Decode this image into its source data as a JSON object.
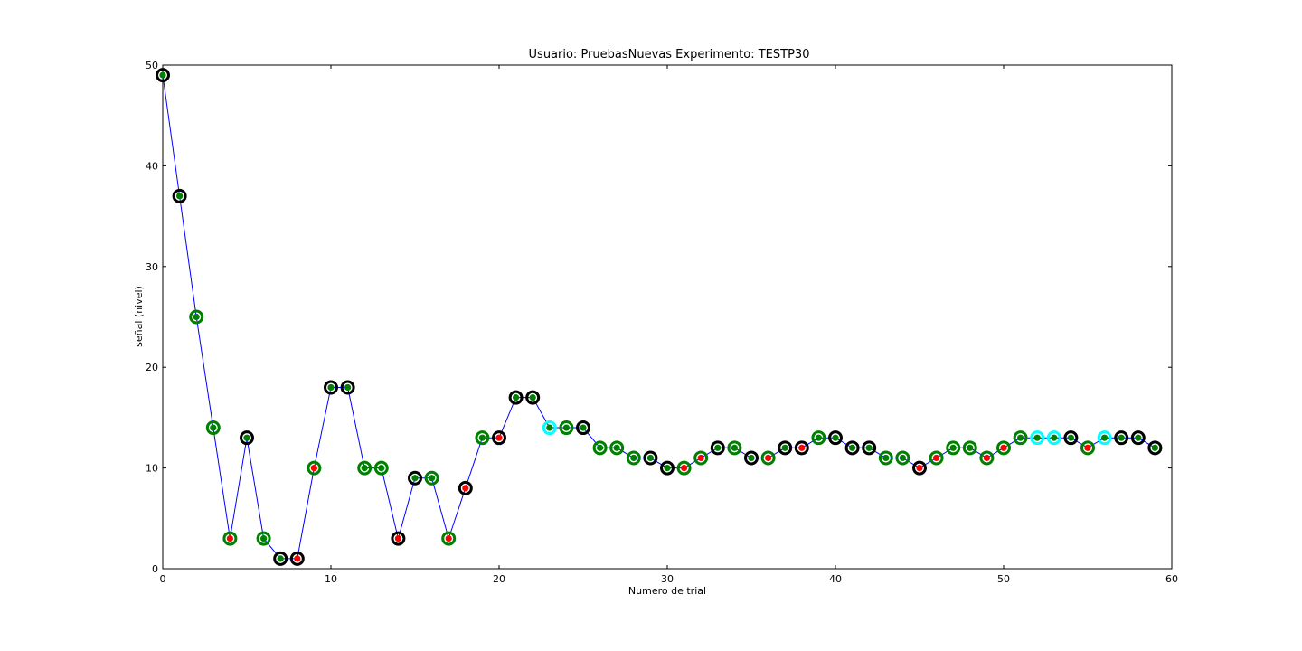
{
  "chart_data": {
    "type": "line",
    "title": "Usuario: PruebasNuevas Experimento: TESTP30",
    "xlabel": "Numero de trial",
    "ylabel": "señal (nivel)",
    "xlim": [
      0,
      60
    ],
    "ylim": [
      0,
      50
    ],
    "xticks": [
      0,
      10,
      20,
      30,
      40,
      50,
      60
    ],
    "yticks": [
      0,
      10,
      20,
      30,
      40,
      50
    ],
    "grid": false,
    "legend": "none",
    "line_color": "#0000ff",
    "series": [
      {
        "x": [
          0,
          1,
          2,
          3,
          4,
          5,
          6,
          7,
          8,
          9,
          10,
          11,
          12,
          13,
          14,
          15,
          16,
          17,
          18,
          19,
          20,
          21,
          22,
          23,
          24,
          25,
          26,
          27,
          28,
          29,
          30,
          31,
          32,
          33,
          34,
          35,
          36,
          37,
          38,
          39,
          40,
          41,
          42,
          43,
          44,
          45,
          46,
          47,
          48,
          49,
          50,
          51,
          52,
          53,
          54,
          55,
          56,
          57,
          58,
          59
        ],
        "values": [
          49,
          37,
          25,
          14,
          3,
          13,
          3,
          1,
          1,
          10,
          18,
          18,
          10,
          10,
          3,
          9,
          9,
          3,
          8,
          13,
          13,
          17,
          17,
          14,
          14,
          14,
          12,
          12,
          11,
          11,
          10,
          10,
          11,
          12,
          12,
          11,
          11,
          12,
          12,
          13,
          13,
          12,
          12,
          11,
          11,
          10,
          11,
          12,
          12,
          11,
          12,
          13,
          13,
          13,
          13,
          12,
          13,
          13,
          13,
          12
        ],
        "ring_colors": [
          "black",
          "black",
          "green",
          "green",
          "green",
          "black",
          "green",
          "black",
          "black",
          "green",
          "black",
          "black",
          "green",
          "green",
          "black",
          "black",
          "green",
          "green",
          "black",
          "green",
          "black",
          "black",
          "black",
          "cyan",
          "green",
          "black",
          "green",
          "green",
          "green",
          "black",
          "black",
          "green",
          "green",
          "black",
          "green",
          "black",
          "green",
          "black",
          "black",
          "green",
          "black",
          "black",
          "black",
          "green",
          "green",
          "black",
          "green",
          "green",
          "green",
          "green",
          "green",
          "green",
          "cyan",
          "cyan",
          "black",
          "green",
          "cyan",
          "black",
          "black",
          "black"
        ],
        "dot_colors": [
          "green",
          "green",
          "green",
          "green",
          "red",
          "green",
          "green",
          "green",
          "red",
          "red",
          "green",
          "green",
          "green",
          "green",
          "red",
          "green",
          "green",
          "red",
          "red",
          "green",
          "red",
          "green",
          "green",
          "green",
          "green",
          "green",
          "green",
          "green",
          "green",
          "green",
          "green",
          "red",
          "red",
          "green",
          "green",
          "green",
          "red",
          "green",
          "red",
          "green",
          "green",
          "green",
          "green",
          "green",
          "green",
          "red",
          "red",
          "green",
          "green",
          "red",
          "red",
          "green",
          "green",
          "green",
          "green",
          "red",
          "green",
          "green",
          "green",
          "green"
        ]
      }
    ],
    "colors": {
      "black": "#000000",
      "green": "#008000",
      "cyan": "#00ffff",
      "red": "#ff0000"
    }
  }
}
